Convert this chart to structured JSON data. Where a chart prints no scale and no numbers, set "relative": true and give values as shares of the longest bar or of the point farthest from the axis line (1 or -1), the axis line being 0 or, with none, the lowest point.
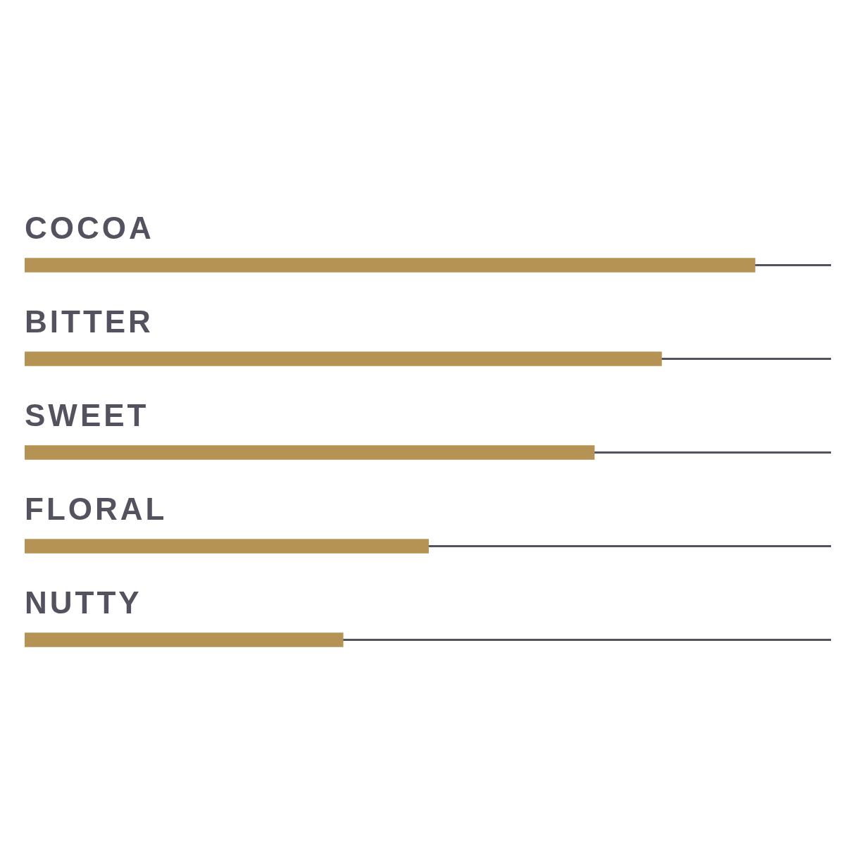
{
  "chart_data": {
    "type": "bar",
    "orientation": "horizontal",
    "relative": true,
    "categories": [
      "COCOA",
      "BITTER",
      "SWEET",
      "FLORAL",
      "NUTTY"
    ],
    "values": [
      1,
      0.872,
      0.78,
      0.553,
      0.436
    ],
    "color": "#b59355",
    "legend": false
  }
}
